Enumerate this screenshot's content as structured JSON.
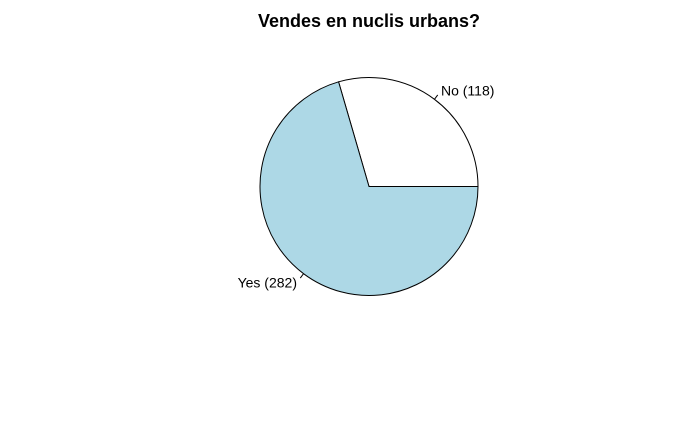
{
  "chart_data": {
    "type": "pie",
    "title": "Vendes en nuclis urbans?",
    "slices": [
      {
        "label": "No (118)",
        "category": "No",
        "value": 118,
        "color": "#ffffff"
      },
      {
        "label": "Yes (282)",
        "category": "Yes",
        "value": 282,
        "color": "#add8e6"
      }
    ],
    "total": 400,
    "start_angle_deg": 0,
    "direction": "counterclockwise",
    "border_color": "#000000"
  }
}
